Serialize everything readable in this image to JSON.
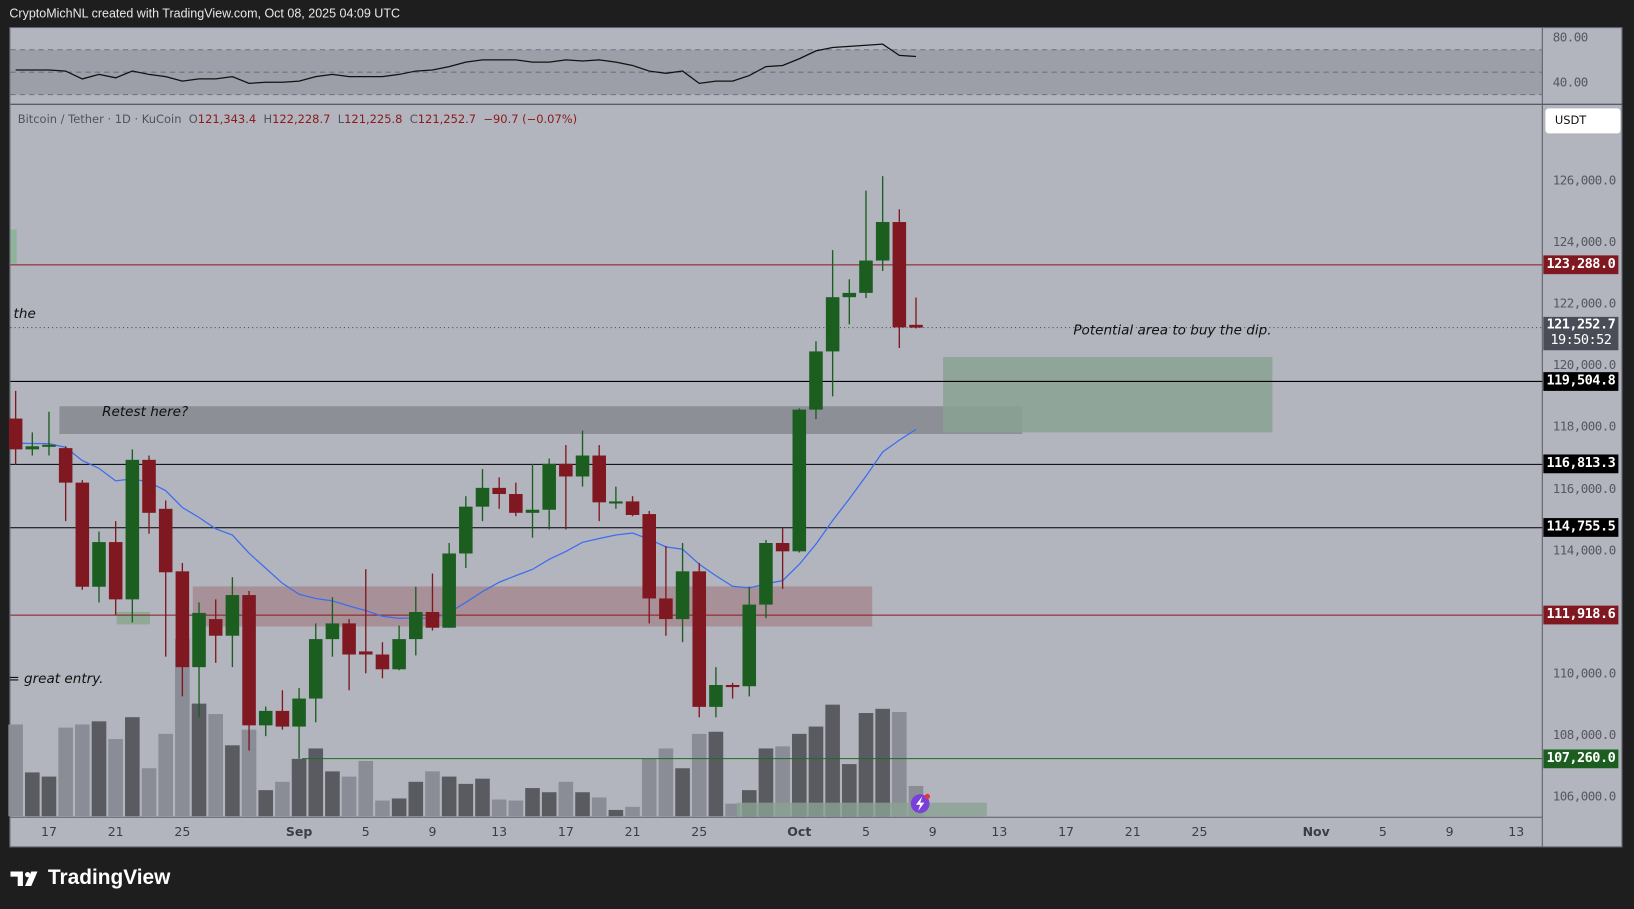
{
  "header": {
    "attribution": "CryptoMichNL created with TradingView.com, Oct 08, 2025 04:09 UTC"
  },
  "legend": {
    "symbol": "Bitcoin / Tether · 1D · KuCoin",
    "open_label": "O",
    "open": "121,343.4",
    "high_label": "H",
    "high": "122,228.7",
    "low_label": "L",
    "low": "121,225.8",
    "close_label": "C",
    "close": "121,252.7",
    "change": "−90.7 (−0.07%)"
  },
  "currency_button": "USDT",
  "countdown": "19:50:52",
  "annotations": {
    "retest": "Retest here?",
    "buy_dip": "Potential area to buy the dip.",
    "the": "the",
    "great_entry": "= great entry."
  },
  "price_lines": [
    {
      "label": "123,288.0",
      "value": 123288.0,
      "color": "#8b1a1a"
    },
    {
      "label": "119,504.8",
      "value": 119504.8,
      "color": "#000000"
    },
    {
      "label": "116,813.3",
      "value": 116813.3,
      "color": "#000000"
    },
    {
      "label": "114,755.5",
      "value": 114755.5,
      "color": "#000000"
    },
    {
      "label": "111,918.6",
      "value": 111918.6,
      "color": "#8b1a1a"
    },
    {
      "label": "107,260.0",
      "value": 107260.0,
      "color": "#1e6b24"
    }
  ],
  "current_price": {
    "label": "121,252.7",
    "value": 121252.7
  },
  "footer": {
    "brand": "TradingView"
  },
  "colors": {
    "up": "#1b5e20",
    "down": "#7f1820",
    "ema": "#3d6cf0",
    "background": "#b2b5be",
    "vol_up": "#5a5b60",
    "vol_down": "#8a8c96"
  },
  "chart_data": {
    "type": "candlestick",
    "symbol": "BTC/USDT",
    "interval": "1D",
    "ylim": [
      105500,
      127000
    ],
    "y_ticks": [
      "126,000.0",
      "124,000.0",
      "122,000.0",
      "120,000.0",
      "118,000.0",
      "116,000.0",
      "114,000.0",
      "110,000.0",
      "108,000.0",
      "106,000.0"
    ],
    "y_tick_values": [
      126000,
      124000,
      122000,
      120000,
      118000,
      116000,
      114000,
      110000,
      108000,
      106000
    ],
    "x_ticks": [
      {
        "label": "17",
        "date": "2025-08-17"
      },
      {
        "label": "21",
        "date": "2025-08-21"
      },
      {
        "label": "25",
        "date": "2025-08-25"
      },
      {
        "label": "Sep",
        "date": "2025-09-01"
      },
      {
        "label": "5",
        "date": "2025-09-05"
      },
      {
        "label": "9",
        "date": "2025-09-09"
      },
      {
        "label": "13",
        "date": "2025-09-13"
      },
      {
        "label": "17",
        "date": "2025-09-17"
      },
      {
        "label": "21",
        "date": "2025-09-21"
      },
      {
        "label": "25",
        "date": "2025-09-25"
      },
      {
        "label": "Oct",
        "date": "2025-10-01"
      },
      {
        "label": "5",
        "date": "2025-10-05"
      },
      {
        "label": "9",
        "date": "2025-10-09"
      },
      {
        "label": "13",
        "date": "2025-10-13"
      },
      {
        "label": "17",
        "date": "2025-10-17"
      },
      {
        "label": "21",
        "date": "2025-10-21"
      },
      {
        "label": "25",
        "date": "2025-10-25"
      },
      {
        "label": "Nov",
        "date": "2025-11-01"
      },
      {
        "label": "5",
        "date": "2025-11-05"
      },
      {
        "label": "9",
        "date": "2025-11-09"
      },
      {
        "label": "13",
        "date": "2025-11-13"
      }
    ],
    "first_date": "2025-08-15",
    "ohlc": [
      [
        118300,
        119200,
        116800,
        117300
      ],
      [
        117300,
        117850,
        117100,
        117400
      ],
      [
        117400,
        118520,
        117100,
        117450
      ],
      [
        117340,
        117400,
        114970,
        116220
      ],
      [
        116220,
        116300,
        112740,
        112840
      ],
      [
        112840,
        114630,
        112330,
        114290
      ],
      [
        114290,
        114970,
        111920,
        112430
      ],
      [
        112430,
        117300,
        111680,
        116960
      ],
      [
        116960,
        117100,
        114560,
        115240
      ],
      [
        115370,
        115640,
        110570,
        113310
      ],
      [
        113340,
        113610,
        109280,
        110230
      ],
      [
        110230,
        112330,
        108600,
        111990
      ],
      [
        111790,
        112430,
        110370,
        111250
      ],
      [
        111250,
        113150,
        110230,
        112570
      ],
      [
        112570,
        112700,
        107520,
        108340
      ],
      [
        108340,
        108950,
        107990,
        108810
      ],
      [
        108810,
        109480,
        108200,
        108300
      ],
      [
        108300,
        109550,
        107260,
        109210
      ],
      [
        109210,
        111650,
        108440,
        111140
      ],
      [
        111140,
        112500,
        110570,
        111650
      ],
      [
        111650,
        111790,
        109480,
        110640
      ],
      [
        110740,
        113410,
        110030,
        110640
      ],
      [
        110640,
        111040,
        109870,
        110160
      ],
      [
        110160,
        111580,
        110130,
        111140
      ],
      [
        111140,
        112840,
        110610,
        112020
      ],
      [
        112020,
        113270,
        111420,
        111510
      ],
      [
        111510,
        114260,
        111510,
        113920
      ],
      [
        113920,
        115780,
        113450,
        115440
      ],
      [
        115440,
        116660,
        114970,
        116050
      ],
      [
        116050,
        116390,
        115370,
        115850
      ],
      [
        115850,
        116220,
        115130,
        115240
      ],
      [
        115240,
        116830,
        114430,
        115340
      ],
      [
        115340,
        117000,
        114700,
        116830
      ],
      [
        116830,
        117440,
        114700,
        116420
      ],
      [
        116420,
        117910,
        116090,
        117100
      ],
      [
        117100,
        117440,
        114970,
        115580
      ],
      [
        115580,
        116090,
        115370,
        115610
      ],
      [
        115610,
        115780,
        115130,
        115170
      ],
      [
        115200,
        115300,
        111650,
        112460
      ],
      [
        112460,
        114160,
        111250,
        111790
      ],
      [
        111790,
        114260,
        111040,
        113340
      ],
      [
        113340,
        113610,
        108600,
        108940
      ],
      [
        108940,
        110230,
        108600,
        109650
      ],
      [
        109650,
        109720,
        109210,
        109610
      ],
      [
        109610,
        112840,
        109280,
        112260
      ],
      [
        112260,
        114360,
        111820,
        114260
      ],
      [
        114260,
        114740,
        112770,
        113990
      ],
      [
        113990,
        118630,
        113950,
        118590
      ],
      [
        118590,
        120810,
        118280,
        120480
      ],
      [
        120480,
        123770,
        119020,
        122240
      ],
      [
        122240,
        122820,
        121360,
        122380
      ],
      [
        122380,
        125700,
        122210,
        123430
      ],
      [
        123430,
        126170,
        123090,
        124680
      ],
      [
        124680,
        125090,
        120590,
        121260
      ],
      [
        121343.4,
        122228.7,
        121225.8,
        121252.7
      ]
    ],
    "volume_relative": [
      88,
      42,
      38,
      85,
      88,
      91,
      74,
      95,
      46,
      79,
      170,
      108,
      98,
      68,
      83,
      25,
      33,
      55,
      65,
      43,
      38,
      53,
      15,
      17,
      33,
      43,
      38,
      31,
      36,
      16,
      15,
      27,
      23,
      33,
      23,
      18,
      6,
      9,
      55,
      65,
      46,
      79,
      81,
      12,
      25,
      65,
      67,
      79,
      86,
      107,
      50,
      99,
      103,
      100,
      29
    ],
    "rsi": {
      "levels": [
        70,
        50,
        30
      ],
      "ticks": [
        "80.00",
        "40.00"
      ],
      "values": [
        52,
        52,
        52,
        51,
        44,
        48,
        45,
        51,
        48,
        46,
        42,
        44,
        44,
        46,
        40,
        41,
        41,
        42,
        46,
        48,
        46,
        46,
        46,
        48,
        51,
        52,
        55,
        59,
        61,
        61,
        61,
        59,
        59,
        61,
        60,
        61,
        59,
        56,
        51,
        49,
        51,
        40,
        42,
        42,
        47,
        55,
        56,
        62,
        69,
        72,
        73,
        74,
        75,
        65,
        64
      ]
    },
    "ema_period": 20,
    "zones": [
      {
        "name": "retest-zone",
        "from": "2025-08-18",
        "to": "2025-10-14",
        "low": 117800,
        "high": 118700,
        "color": "#868891"
      },
      {
        "name": "pink-zone",
        "from": "2025-08-26",
        "to": "2025-10-05",
        "low": 111550,
        "high": 112850,
        "color": "#a58a91"
      },
      {
        "name": "buy-dip-zone",
        "from": "2025-10-10",
        "to": "2025-10-29",
        "low": 117850,
        "high": 120300,
        "color": "#8aa293"
      }
    ]
  }
}
